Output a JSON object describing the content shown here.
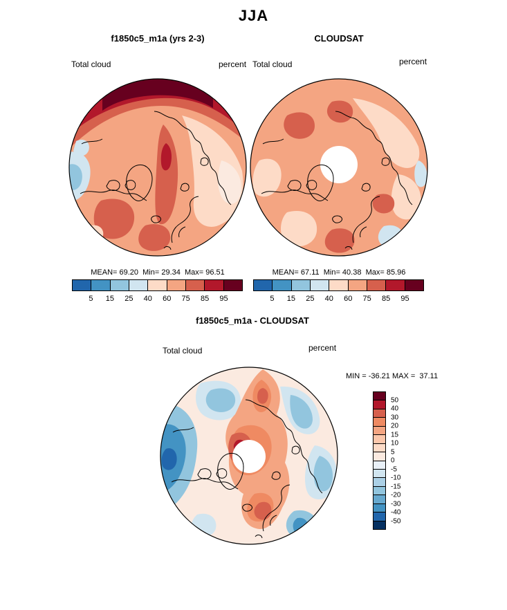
{
  "figure": {
    "season_title": "JJA",
    "panels": [
      {
        "title": "f1850c5_m1a (yrs 2-3)",
        "field_label": "Total cloud",
        "units_label": "percent",
        "stats_line": "MEAN= 69.20  Min= 29.34  Max= 96.51",
        "colorbar": {
          "ticks": [
            "5",
            "15",
            "25",
            "40",
            "60",
            "75",
            "85",
            "95"
          ],
          "colors": [
            "#2166ac",
            "#4393c3",
            "#92c5de",
            "#d1e5f0",
            "#fddbc7",
            "#f4a582",
            "#d6604d",
            "#b2182b",
            "#67001f"
          ]
        }
      },
      {
        "title": "CLOUDSAT",
        "field_label": "Total cloud",
        "units_label": "percent",
        "stats_line": "MEAN= 67.11  Min= 40.38  Max= 85.96",
        "colorbar": {
          "ticks": [
            "5",
            "15",
            "25",
            "40",
            "60",
            "75",
            "85",
            "95"
          ],
          "colors": [
            "#2166ac",
            "#4393c3",
            "#92c5de",
            "#d1e5f0",
            "#fddbc7",
            "#f4a582",
            "#d6604d",
            "#b2182b",
            "#67001f"
          ]
        }
      }
    ],
    "diff": {
      "title": "f1850c5_m1a - CLOUDSAT",
      "field_label": "Total cloud",
      "units_label": "percent",
      "stats_line": "MIN = -36.21 MAX =  37.11",
      "colorbar": {
        "labels": [
          "50",
          "40",
          "30",
          "20",
          "15",
          "10",
          "5",
          "0",
          "-5",
          "-10",
          "-15",
          "-20",
          "-30",
          "-40",
          "-50"
        ],
        "colors": [
          "#67001f",
          "#b2182b",
          "#d6604d",
          "#ef8a62",
          "#f4a582",
          "#fcc7ab",
          "#fddbc7",
          "#fbeae0",
          "#e9f0f7",
          "#d1e5f0",
          "#abd0e6",
          "#92c5de",
          "#67a9cf",
          "#4393c3",
          "#2166ac",
          "#053061"
        ]
      }
    }
  },
  "chart_data": [
    {
      "type": "heatmap",
      "title": "f1850c5_m1a (yrs 2-3)",
      "season": "JJA",
      "variable": "Total cloud",
      "units": "percent",
      "projection": "north polar stereographic",
      "stats": {
        "mean": 69.2,
        "min": 29.34,
        "max": 96.51
      },
      "contour_levels": [
        5,
        15,
        25,
        40,
        60,
        75,
        85,
        95
      ],
      "palette": [
        "#2166ac",
        "#4393c3",
        "#92c5de",
        "#d1e5f0",
        "#fddbc7",
        "#f4a582",
        "#d6604d",
        "#b2182b",
        "#67001f"
      ],
      "legend_position": "bottom"
    },
    {
      "type": "heatmap",
      "title": "CLOUDSAT",
      "season": "JJA",
      "variable": "Total cloud",
      "units": "percent",
      "projection": "north polar stereographic",
      "stats": {
        "mean": 67.11,
        "min": 40.38,
        "max": 85.96
      },
      "contour_levels": [
        5,
        15,
        25,
        40,
        60,
        75,
        85,
        95
      ],
      "palette": [
        "#2166ac",
        "#4393c3",
        "#92c5de",
        "#d1e5f0",
        "#fddbc7",
        "#f4a582",
        "#d6604d",
        "#b2182b",
        "#67001f"
      ],
      "legend_position": "bottom"
    },
    {
      "type": "heatmap",
      "title": "f1850c5_m1a - CLOUDSAT",
      "season": "JJA",
      "variable": "Total cloud difference",
      "units": "percent",
      "projection": "north polar stereographic",
      "stats": {
        "min": -36.21,
        "max": 37.11
      },
      "contour_levels": [
        -50,
        -40,
        -30,
        -20,
        -15,
        -10,
        -5,
        0,
        5,
        10,
        15,
        20,
        30,
        40,
        50
      ],
      "palette_top_to_bottom": [
        "#67001f",
        "#b2182b",
        "#d6604d",
        "#ef8a62",
        "#f4a582",
        "#fcc7ab",
        "#fddbc7",
        "#fbeae0",
        "#e9f0f7",
        "#d1e5f0",
        "#abd0e6",
        "#92c5de",
        "#67a9cf",
        "#4393c3",
        "#2166ac",
        "#053061"
      ],
      "legend_position": "right"
    }
  ]
}
